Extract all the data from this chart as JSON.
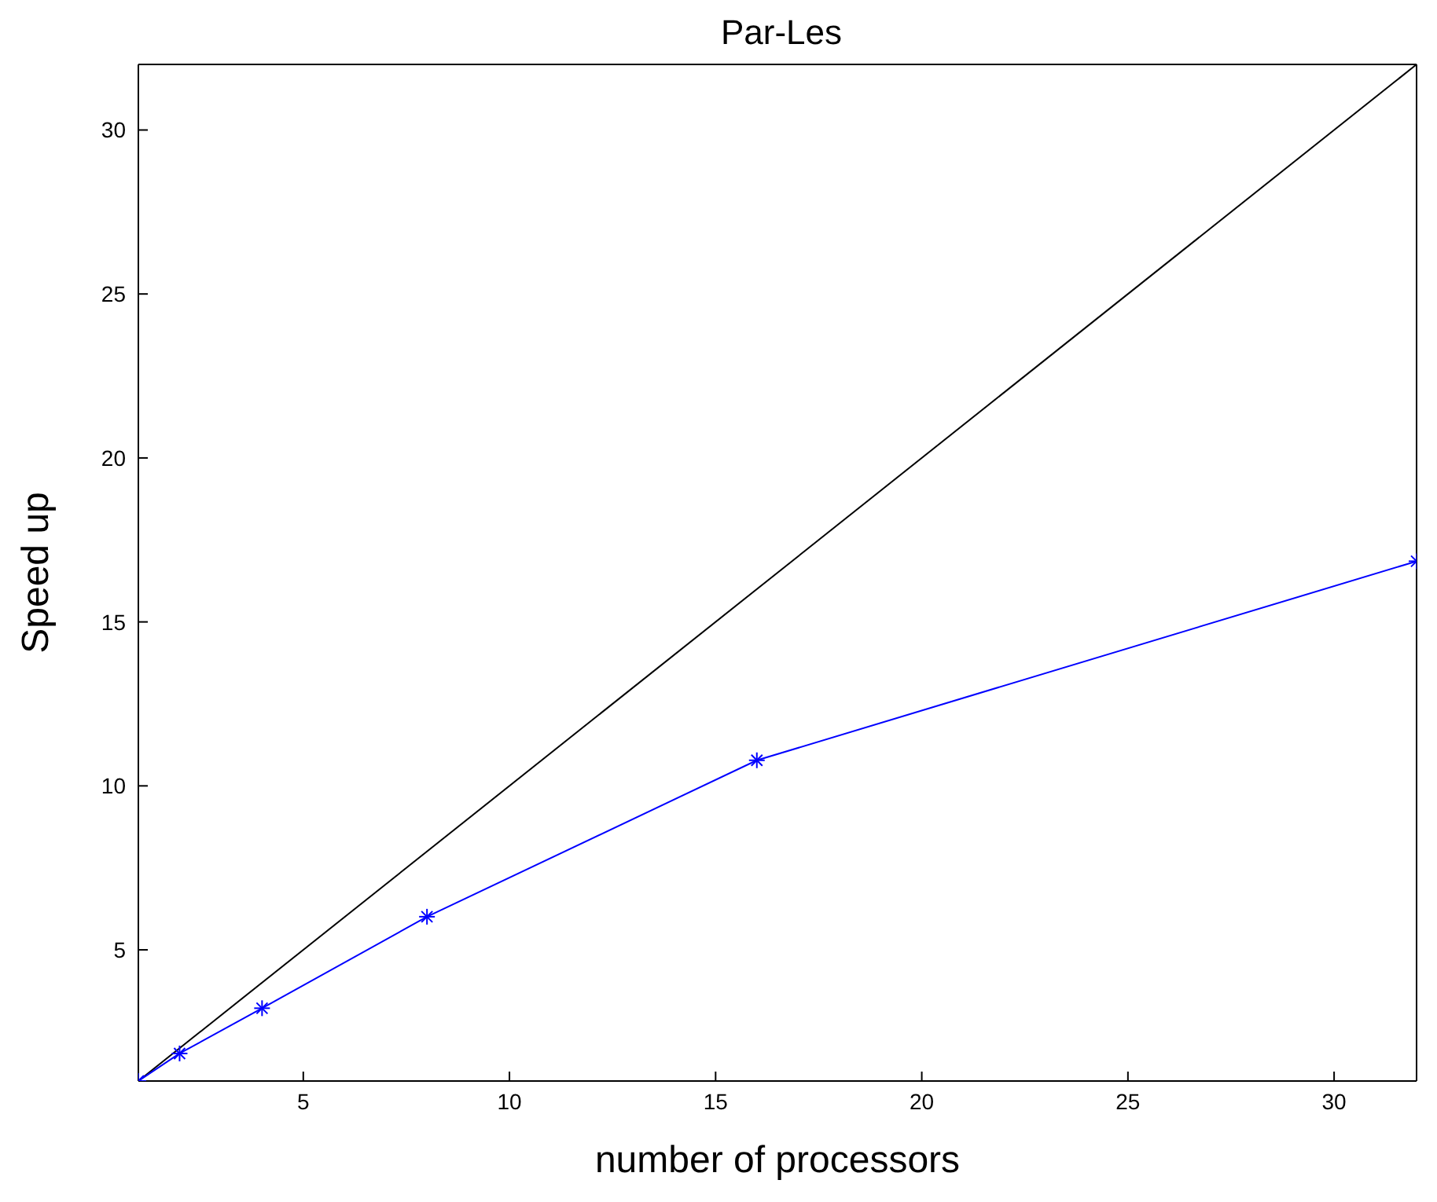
{
  "chart_data": {
    "type": "line",
    "title": "Par-Les",
    "xlabel": "number of processors",
    "ylabel": "Speed up",
    "series": [
      {
        "color": "#000000",
        "x": [
          1,
          32
        ],
        "values": [
          1,
          32
        ]
      },
      {
        "color": "#0000ff",
        "x": [
          1,
          2,
          4,
          8,
          16,
          32
        ],
        "values": [
          1,
          1.84,
          3.22,
          6.01,
          10.78,
          16.85
        ],
        "marker": "cross"
      }
    ],
    "xlim": [
      1,
      32
    ],
    "ylim": [
      1,
      32
    ],
    "xticks": [
      5,
      10,
      15,
      20,
      25,
      30
    ],
    "yticks": [
      5,
      10,
      15,
      20,
      25,
      30
    ],
    "line_style": "solid"
  }
}
